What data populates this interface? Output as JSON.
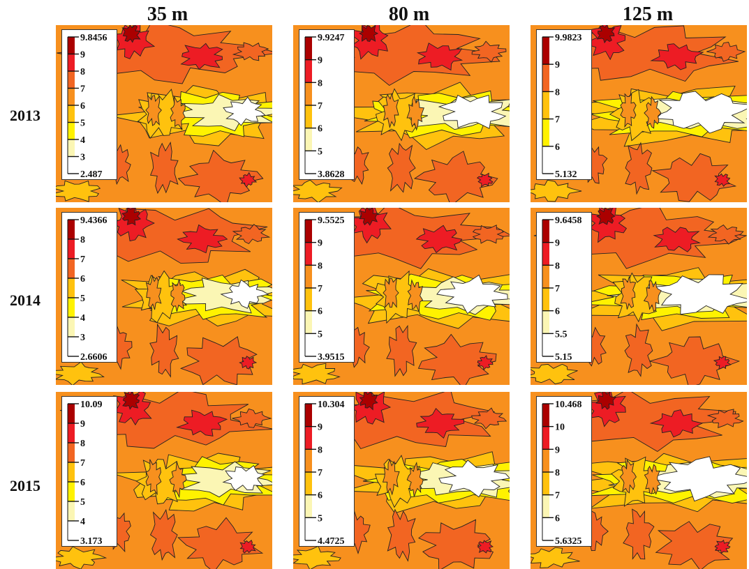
{
  "columns": [
    "35 m",
    "80 m",
    "125 m"
  ],
  "rows": [
    "2013",
    "2014",
    "2015"
  ],
  "colors": {
    "bands": [
      "#ffffff",
      "#fbf6b4",
      "#fff200",
      "#ffc20e",
      "#f7901e",
      "#f26522",
      "#ed1c24",
      "#ab0000"
    ],
    "contour_line": "#222222"
  },
  "chart_data": {
    "type": "heatmap",
    "title": "",
    "grid": false,
    "legend_position": "top-left inside each panel",
    "panels": [
      {
        "row": "2013",
        "column": "35 m",
        "max": "9.8456",
        "min": "2.487",
        "ticks": [
          "9",
          "8",
          "7",
          "6",
          "5",
          "4",
          "3"
        ]
      },
      {
        "row": "2013",
        "column": "80 m",
        "max": "9.9247",
        "min": "3.8628",
        "ticks": [
          "9",
          "8",
          "7",
          "6",
          "5"
        ]
      },
      {
        "row": "2013",
        "column": "125 m",
        "max": "9.9823",
        "min": "5.132",
        "ticks": [
          "9",
          "8",
          "7",
          "6"
        ]
      },
      {
        "row": "2014",
        "column": "35 m",
        "max": "9.4366",
        "min": "2.6606",
        "ticks": [
          "8",
          "7",
          "6",
          "5",
          "4",
          "3"
        ]
      },
      {
        "row": "2014",
        "column": "80 m",
        "max": "9.5525",
        "min": "3.9515",
        "ticks": [
          "9",
          "8",
          "7",
          "6",
          "5"
        ]
      },
      {
        "row": "2014",
        "column": "125 m",
        "max": "9.6458",
        "min": "5.15",
        "ticks": [
          "9",
          "8",
          "7",
          "6",
          "5.5"
        ]
      },
      {
        "row": "2015",
        "column": "35 m",
        "max": "10.09",
        "min": "3.173",
        "ticks": [
          "9",
          "8",
          "7",
          "6",
          "5",
          "4"
        ]
      },
      {
        "row": "2015",
        "column": "80 m",
        "max": "10.304",
        "min": "4.4725",
        "ticks": [
          "9",
          "8",
          "7",
          "6",
          "5"
        ]
      },
      {
        "row": "2015",
        "column": "125 m",
        "max": "10.468",
        "min": "5.6325",
        "ticks": [
          "10",
          "9",
          "8",
          "7",
          "6"
        ]
      }
    ]
  }
}
